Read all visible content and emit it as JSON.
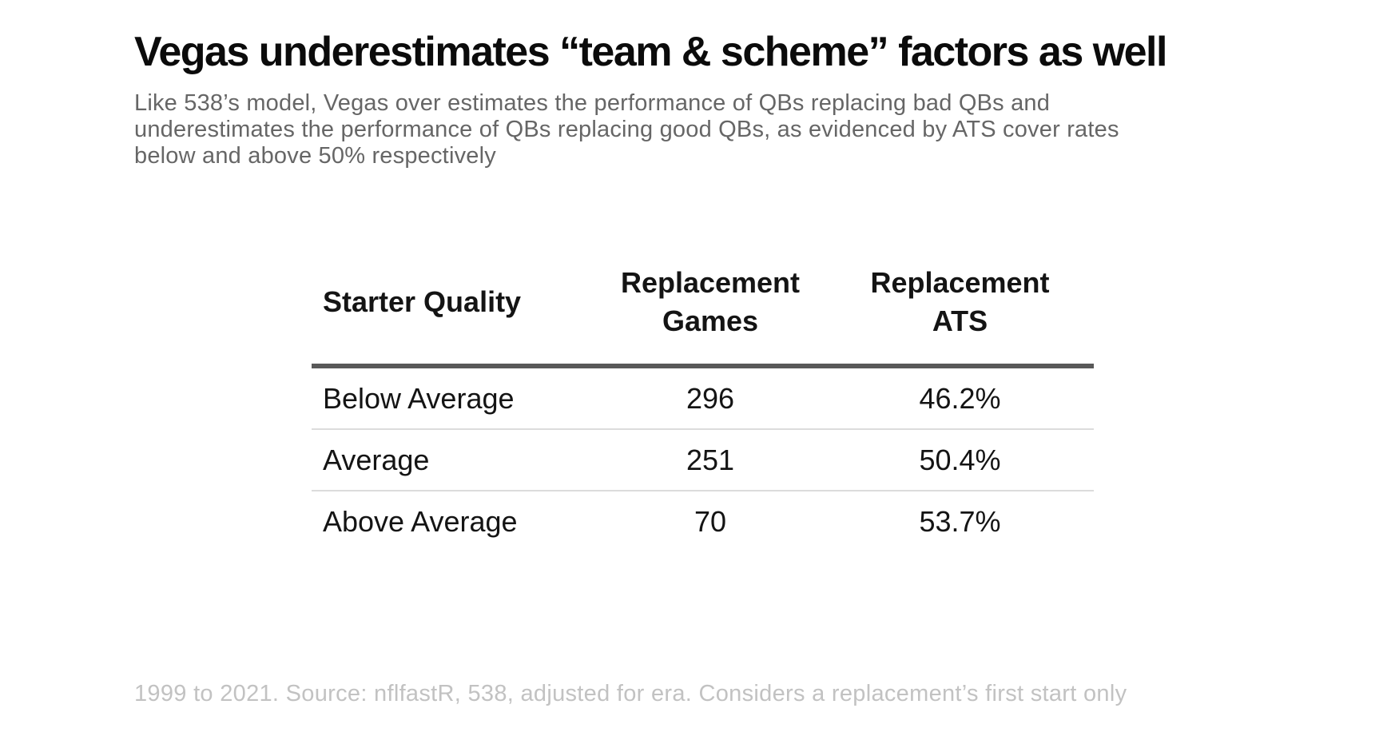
{
  "page": {
    "title": "Vegas underestimates “team & scheme” factors as well",
    "subtitle_lines": [
      "Like 538’s model, Vegas over estimates the performance of QBs replacing bad QBs and",
      "underestimates the performance of QBs replacing good QBs, as evidenced by ATS cover rates",
      "below and above 50% respectively"
    ],
    "footnote": "1999 to 2021. Source: nflfastR, 538, adjusted for era. Considers a replacement’s first start only"
  },
  "table": {
    "headers": [
      "Starter Quality",
      "Replacement\nGames",
      "Replacement\nATS"
    ],
    "rows": [
      [
        "Below Average",
        "296",
        "46.2%"
      ],
      [
        "Average",
        "251",
        "50.4%"
      ],
      [
        "Above Average",
        "70",
        "53.7%"
      ]
    ]
  },
  "colors": {
    "title_text": "#0b0b0b",
    "subtitle_text": "#666666",
    "footnote_text": "#c2c2c2",
    "header_rule": "#595959",
    "row_rule": "#dcdcdc",
    "background": "#ffffff"
  },
  "chart_data": {
    "type": "table",
    "title": "Vegas underestimates “team & scheme” factors as well",
    "subtitle": "Like 538’s model, Vegas over estimates the performance of QBs replacing bad QBs and underestimates the performance of QBs replacing good QBs, as evidenced by ATS cover rates below and above 50% respectively",
    "columns": [
      "Starter Quality",
      "Replacement Games",
      "Replacement ATS"
    ],
    "rows": [
      [
        "Below Average",
        296,
        "46.2%"
      ],
      [
        "Average",
        251,
        "50.4%"
      ],
      [
        "Above Average",
        70,
        "53.7%"
      ]
    ],
    "source_note": "1999 to 2021. Source: nflfastR, 538, adjusted for era. Considers a replacement’s first start only"
  }
}
